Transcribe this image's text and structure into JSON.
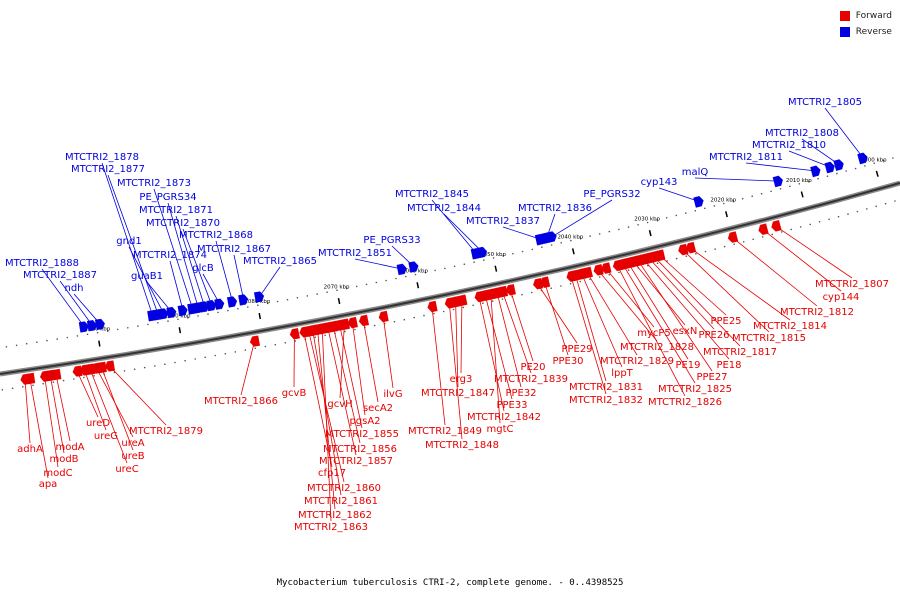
{
  "caption": "Mycobacterium tuberculosis CTRI-2, complete genome. - 0..4398525",
  "legend": {
    "forward_label": "Forward",
    "reverse_label": "Reverse",
    "forward_color": "#e60000",
    "reverse_color": "#0000e0"
  },
  "axis": {
    "ticks": [
      {
        "kbp": 2000,
        "label": "2000 kbp"
      },
      {
        "kbp": 2010,
        "label": "2010 kbp"
      },
      {
        "kbp": 2020,
        "label": "2020 kbp"
      },
      {
        "kbp": 2030,
        "label": "2030 kbp"
      },
      {
        "kbp": 2040,
        "label": "2040 kbp"
      },
      {
        "kbp": 2050,
        "label": "2050 kbp"
      },
      {
        "kbp": 2060,
        "label": "2060 kbp"
      },
      {
        "kbp": 2070,
        "label": "2070 kbp"
      },
      {
        "kbp": 2080,
        "label": "2080 kbp"
      },
      {
        "kbp": 2090,
        "label": "2090 kbp"
      },
      {
        "kbp": 2100,
        "label": "2100 kbp"
      }
    ]
  },
  "reverse_genes": [
    {
      "label": "MTCTRI2_1888",
      "kbp": 2101.5
    },
    {
      "label": "MTCTRI2_1887",
      "kbp": 2100.5
    },
    {
      "label": "ndh",
      "kbp": 2099.5
    },
    {
      "label": "MTCTRI2_1878",
      "kbp": 2093.0
    },
    {
      "label": "MTCTRI2_1877",
      "kbp": 2092.3
    },
    {
      "label": "gnd1",
      "kbp": 2091.6
    },
    {
      "label": "guaB1",
      "kbp": 2090.6
    },
    {
      "label": "MTCTRI2_1873",
      "kbp": 2088.0
    },
    {
      "label": "PE_PGRS34",
      "kbp": 2087.3
    },
    {
      "label": "MTCTRI2_1874",
      "kbp": 2089.2
    },
    {
      "label": "MTCTRI2_1871",
      "kbp": 2086.5
    },
    {
      "label": "MTCTRI2_1870",
      "kbp": 2085.6
    },
    {
      "label": "glcB",
      "kbp": 2084.6
    },
    {
      "label": "MTCTRI2_1868",
      "kbp": 2083.0
    },
    {
      "label": "MTCTRI2_1867",
      "kbp": 2081.6
    },
    {
      "label": "MTCTRI2_1865",
      "kbp": 2079.6
    },
    {
      "label": "MTCTRI2_1851",
      "kbp": 2061.5
    },
    {
      "label": "PE_PGRS33",
      "kbp": 2060.0
    },
    {
      "label": "MTCTRI2_1845",
      "kbp": 2052.0
    },
    {
      "label": "MTCTRI2_1844",
      "kbp": 2051.2
    },
    {
      "label": "MTCTRI2_1837",
      "kbp": 2043.7
    },
    {
      "label": "MTCTRI2_1836",
      "kbp": 2042.9
    },
    {
      "label": "PE_PGRS32",
      "kbp": 2042.2
    },
    {
      "label": "cyp143",
      "kbp": 2023.0
    },
    {
      "label": "malQ",
      "kbp": 2012.5
    },
    {
      "label": "MTCTRI2_1811",
      "kbp": 2007.5
    },
    {
      "label": "MTCTRI2_1810",
      "kbp": 2005.6
    },
    {
      "label": "MTCTRI2_1808",
      "kbp": 2004.4
    },
    {
      "label": "MTCTRI2_1805",
      "kbp": 2001.2
    }
  ],
  "forward_genes": [
    {
      "label": "adhA",
      "kbp": 2109.6
    },
    {
      "label": "apa",
      "kbp": 2109.0
    },
    {
      "label": "modC",
      "kbp": 2107.2
    },
    {
      "label": "modB",
      "kbp": 2106.5
    },
    {
      "label": "modA",
      "kbp": 2105.8
    },
    {
      "label": "ureD",
      "kbp": 2103.2
    },
    {
      "label": "ureG",
      "kbp": 2102.3
    },
    {
      "label": "ureC",
      "kbp": 2101.6
    },
    {
      "label": "ureA",
      "kbp": 2100.8
    },
    {
      "label": "ureB",
      "kbp": 2100.2
    },
    {
      "label": "MTCTRI2_1879",
      "kbp": 2099.2
    },
    {
      "label": "MTCTRI2_1866",
      "kbp": 2081.2
    },
    {
      "label": "gcvB",
      "kbp": 2076.2
    },
    {
      "label": "cfp17",
      "kbp": 2075.0
    },
    {
      "label": "MTCTRI2_1860",
      "kbp": 2074.4
    },
    {
      "label": "MTCTRI2_1861",
      "kbp": 2073.9
    },
    {
      "label": "MTCTRI2_1862",
      "kbp": 2073.3
    },
    {
      "label": "MTCTRI2_1863",
      "kbp": 2072.7
    },
    {
      "label": "MTCTRI2_1857",
      "kbp": 2072.0
    },
    {
      "label": "MTCTRI2_1856",
      "kbp": 2071.3
    },
    {
      "label": "MTCTRI2_1855",
      "kbp": 2070.5
    },
    {
      "label": "gcvH",
      "kbp": 2069.9
    },
    {
      "label": "pgsA2",
      "kbp": 2068.9
    },
    {
      "label": "secA2",
      "kbp": 2067.5
    },
    {
      "label": "ilvG",
      "kbp": 2065.0
    },
    {
      "label": "MTCTRI2_1849",
      "kbp": 2058.8
    },
    {
      "label": "MTCTRI2_1848",
      "kbp": 2056.6
    },
    {
      "label": "MTCTRI2_1847",
      "kbp": 2055.8
    },
    {
      "label": "erg3",
      "kbp": 2055.0
    },
    {
      "label": "MTCTRI2_1842",
      "kbp": 2052.8
    },
    {
      "label": "PPE33",
      "kbp": 2052.0
    },
    {
      "label": "mgtC",
      "kbp": 2051.3
    },
    {
      "label": "PPE32",
      "kbp": 2050.5
    },
    {
      "label": "MTCTRI2_1839",
      "kbp": 2049.8
    },
    {
      "label": "PE20",
      "kbp": 2048.8
    },
    {
      "label": "PPE29",
      "kbp": 2045.3
    },
    {
      "label": "PPE30",
      "kbp": 2044.4
    },
    {
      "label": "MTCTRI2_1832",
      "kbp": 2041.0
    },
    {
      "label": "MTCTRI2_1831",
      "kbp": 2040.4
    },
    {
      "label": "lppT",
      "kbp": 2039.6
    },
    {
      "label": "MTCTRI2_1829",
      "kbp": 2038.9
    },
    {
      "label": "MTCTRI2_1828",
      "kbp": 2037.5
    },
    {
      "label": "mycP5",
      "kbp": 2036.5
    },
    {
      "label": "MTCTRI2_1826",
      "kbp": 2035.0
    },
    {
      "label": "MTCTRI2_1825",
      "kbp": 2034.3
    },
    {
      "label": "PE19",
      "kbp": 2033.6
    },
    {
      "label": "esxN",
      "kbp": 2032.9
    },
    {
      "label": "PPE27",
      "kbp": 2032.3
    },
    {
      "label": "PE18",
      "kbp": 2031.6
    },
    {
      "label": "PPE26",
      "kbp": 2030.9
    },
    {
      "label": "MTCTRI2_1817",
      "kbp": 2030.2
    },
    {
      "label": "PPE25",
      "kbp": 2029.5
    },
    {
      "label": "MTCTRI2_1815",
      "kbp": 2026.5
    },
    {
      "label": "MTCTRI2_1814",
      "kbp": 2025.5
    },
    {
      "label": "MTCTRI2_1812",
      "kbp": 2020.0
    },
    {
      "label": "cyp144",
      "kbp": 2016.0
    },
    {
      "label": "MTCTRI2_1807",
      "kbp": 2014.3
    }
  ]
}
